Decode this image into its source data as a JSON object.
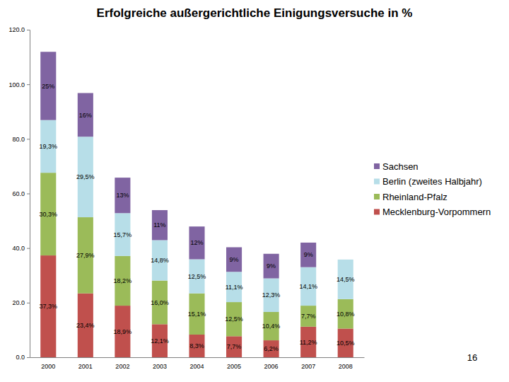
{
  "chart_data": {
    "type": "bar",
    "title": "Erfolgreiche außergerichtliche Einigungsversuche in %",
    "categories": [
      "2000",
      "2001",
      "2002",
      "2003",
      "2004",
      "2005",
      "2006",
      "2007",
      "2008"
    ],
    "series": [
      {
        "name": "Mecklenburg-Vorpommern",
        "color": "#c0504d",
        "values": [
          37.3,
          23.4,
          18.9,
          12.1,
          8.3,
          7.7,
          6.2,
          11.2,
          10.5
        ],
        "value_labels": [
          "37,3%",
          "23,4%",
          "18,9%",
          "12,1%",
          "8,3%",
          "7,7%",
          "6,2%",
          "11,2%",
          "10,5%"
        ]
      },
      {
        "name": "Rheinland-Pfalz",
        "color": "#9bbb59",
        "values": [
          30.3,
          27.9,
          18.2,
          16.0,
          15.1,
          12.5,
          10.4,
          7.7,
          10.8
        ],
        "value_labels": [
          "30,3%",
          "27,9%",
          "18,2%",
          "16,0%",
          "15,1%",
          "12,5%",
          "10,4%",
          "7,7%",
          "10,8%"
        ]
      },
      {
        "name": "Berlin (zweites Halbjahr)",
        "color": "#b7dee8",
        "values": [
          19.3,
          29.5,
          15.7,
          14.8,
          12.5,
          11.1,
          12.3,
          14.1,
          14.5
        ],
        "value_labels": [
          "19,3%",
          "29,5%",
          "15,7%",
          "14,8%",
          "12,5%",
          "11,1%",
          "12,3%",
          "14,1%",
          "14,5%"
        ]
      },
      {
        "name": "Sachsen",
        "color": "#8064a2",
        "values": [
          25,
          16,
          13,
          11,
          12,
          9,
          9,
          9,
          null
        ],
        "value_labels": [
          "25%",
          "16%",
          "13%",
          "11%",
          "12%",
          "9%",
          "9%",
          "9%",
          null
        ]
      }
    ],
    "ylim": [
      0,
      120
    ],
    "yticks": [
      {
        "value": 0,
        "label": "0.0"
      },
      {
        "value": 20,
        "label": "20.0"
      },
      {
        "value": 40,
        "label": "40.0"
      },
      {
        "value": 60,
        "label": "60.0"
      },
      {
        "value": 80,
        "label": "80.0"
      },
      {
        "value": 100,
        "label": "100.0"
      },
      {
        "value": 120,
        "label": "120.0"
      }
    ],
    "stacked": true,
    "data_labels": true,
    "grid": false,
    "legend": "right",
    "annotations": [
      "16"
    ]
  }
}
